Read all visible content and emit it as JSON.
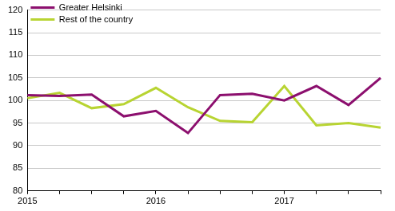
{
  "chart_data": {
    "type": "line",
    "categories": [
      "2015",
      null,
      null,
      null,
      "2016",
      null,
      null,
      null,
      "2017",
      null,
      null,
      null
    ],
    "series": [
      {
        "name": "Greater Helsinki",
        "color": "#8c0f6e",
        "values": [
          101.2,
          101.0,
          101.3,
          96.5,
          97.7,
          92.8,
          101.2,
          101.5,
          100.0,
          103.2,
          99.0,
          105.0
        ]
      },
      {
        "name": "Rest of the country",
        "color": "#b8d432",
        "values": [
          100.5,
          101.7,
          98.3,
          99.2,
          102.8,
          98.5,
          95.5,
          95.2,
          103.2,
          94.5,
          95.0,
          94.0
        ]
      }
    ],
    "ylim": [
      80,
      120
    ],
    "yticks": [
      80,
      85,
      90,
      95,
      100,
      105,
      110,
      115,
      120
    ],
    "grid": true,
    "legend": "top-left"
  }
}
